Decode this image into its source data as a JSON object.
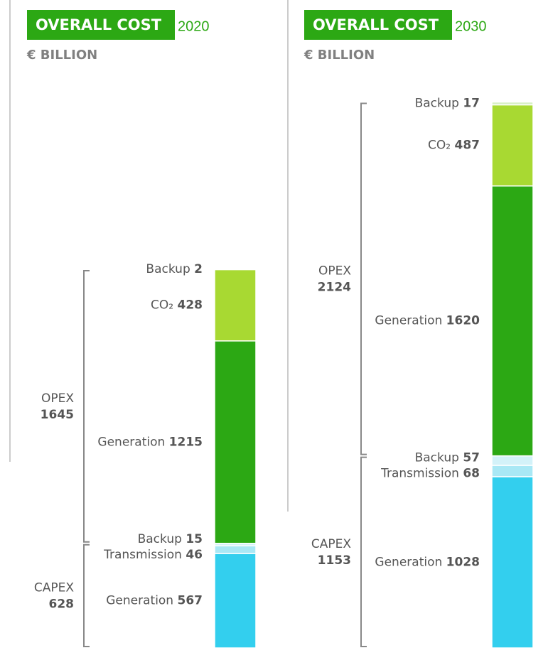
{
  "chart_data": [
    {
      "type": "stacked-bar",
      "title": "OVERALL COST",
      "subtitle": "2020",
      "unit": "€ BILLION",
      "groups": [
        {
          "name": "CAPEX",
          "value": 628
        },
        {
          "name": "OPEX",
          "value": 1645
        }
      ],
      "segments": [
        {
          "name": "Generation",
          "group": 0,
          "color": "#33cfee",
          "value": 567
        },
        {
          "name": "Transmission",
          "group": 0,
          "color": "#a9e8f5",
          "value": 46
        },
        {
          "name": "Backup",
          "group": 0,
          "color": "#d3f2f9",
          "value": 15
        },
        {
          "name": "Generation",
          "group": 1,
          "color": "#2ca814",
          "value": 1215
        },
        {
          "name": "CO₂",
          "group": 1,
          "color": "#a8d932",
          "value": 428
        },
        {
          "name": "Backup",
          "group": 1,
          "color": "#d6efc4",
          "value": 2
        }
      ]
    },
    {
      "type": "stacked-bar",
      "title": "OVERALL COST",
      "subtitle": "2030",
      "unit": "€ BILLION",
      "groups": [
        {
          "name": "CAPEX",
          "value": 1153
        },
        {
          "name": "OPEX",
          "value": 2124
        }
      ],
      "segments": [
        {
          "name": "Generation",
          "group": 0,
          "color": "#33cfee",
          "value": 1028
        },
        {
          "name": "Transmission",
          "group": 0,
          "color": "#a9e8f5",
          "value": 68
        },
        {
          "name": "Backup",
          "group": 0,
          "color": "#d3f2f9",
          "value": 57
        },
        {
          "name": "Generation",
          "group": 1,
          "color": "#2ca814",
          "value": 1620
        },
        {
          "name": "CO₂",
          "group": 1,
          "color": "#a8d932",
          "value": 487
        },
        {
          "name": "Backup",
          "group": 1,
          "color": "#d6efc4",
          "value": 17
        }
      ]
    }
  ]
}
